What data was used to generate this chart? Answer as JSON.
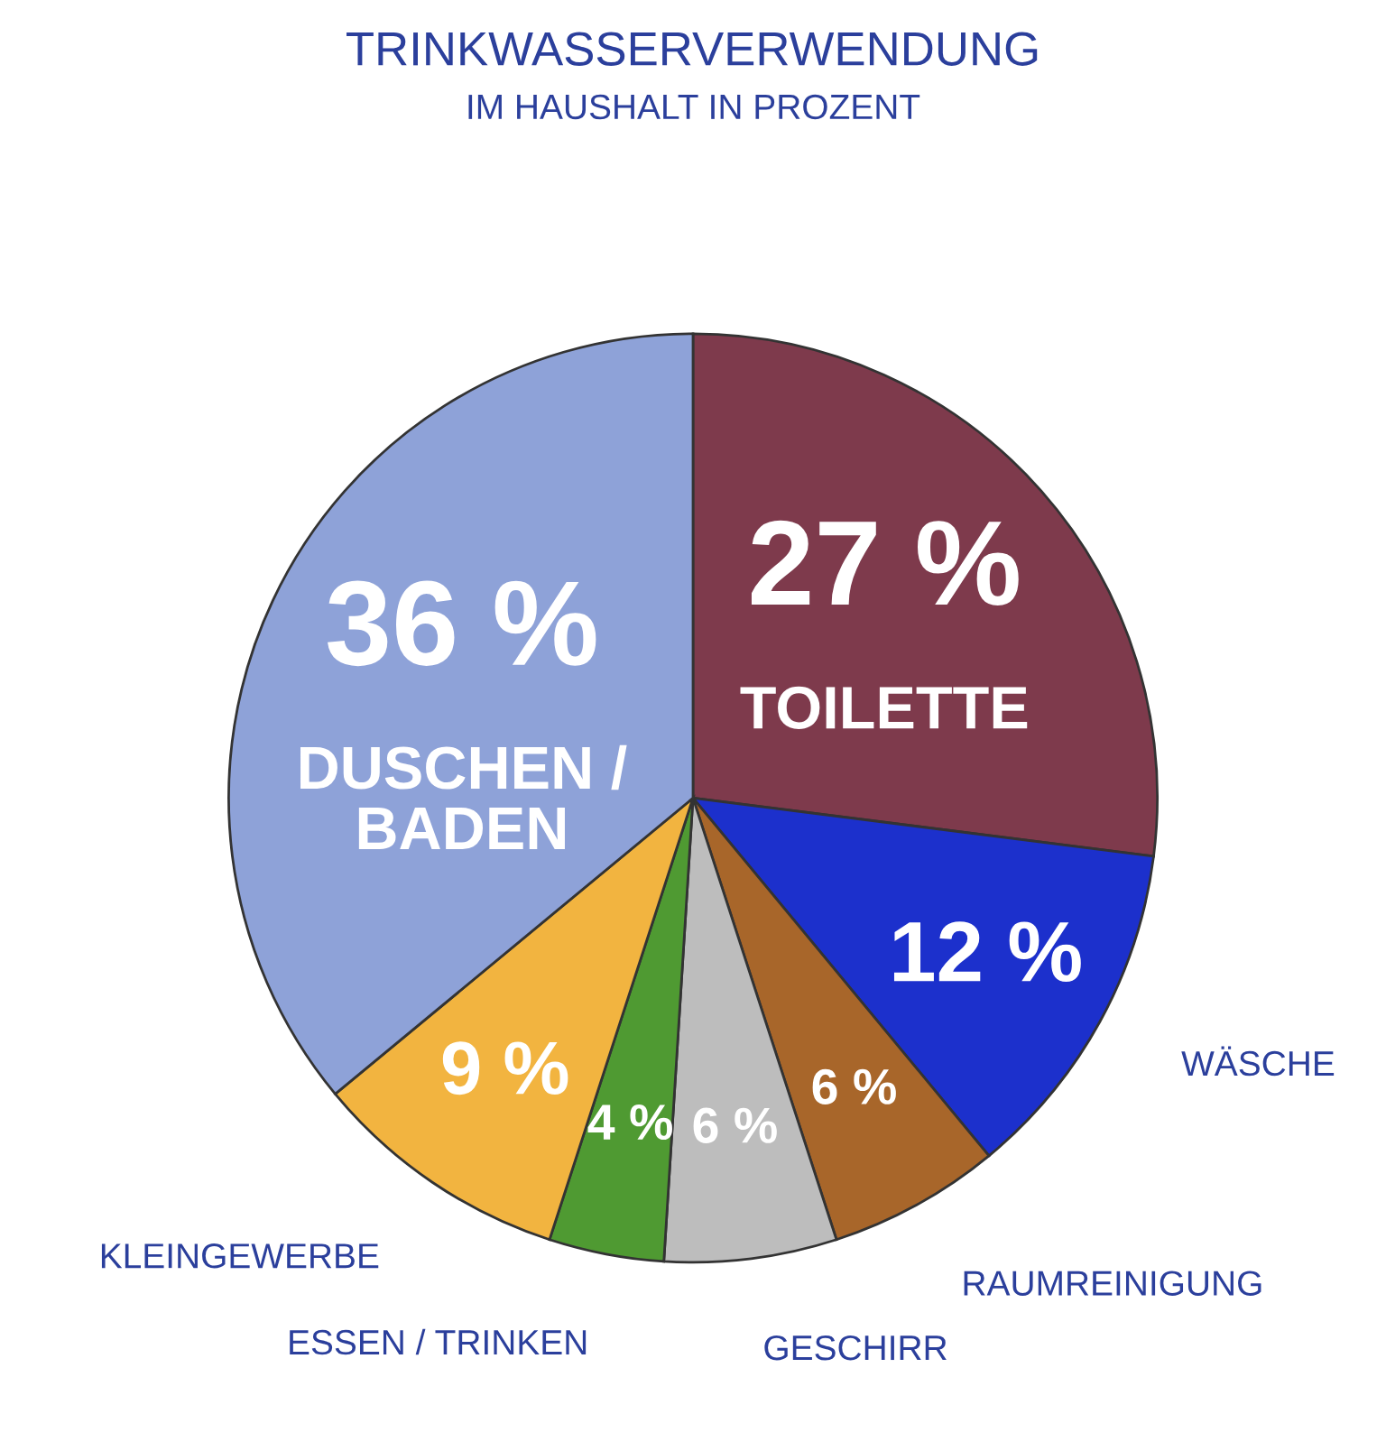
{
  "chart_data": {
    "type": "pie",
    "title": "TRINKWASSERVERWENDUNG",
    "subtitle": "IM HAUSHALT IN PROZENT",
    "categories": [
      "TOILETTE",
      "WÄSCHE",
      "RAUMREINIGUNG",
      "GESCHIRR",
      "ESSEN / TRINKEN",
      "KLEINGEWERBE",
      "DUSCHEN / BADEN"
    ],
    "values": [
      27,
      12,
      6,
      6,
      4,
      9,
      36
    ],
    "value_labels": [
      "27 %",
      "12 %",
      "6 %",
      "6 %",
      "4 %",
      "9 %",
      "36 %"
    ],
    "colors": [
      "#7e3a4c",
      "#1c30cc",
      "#a8662a",
      "#bdbdbd",
      "#4f9a32",
      "#f2b440",
      "#8ea2d8"
    ]
  }
}
